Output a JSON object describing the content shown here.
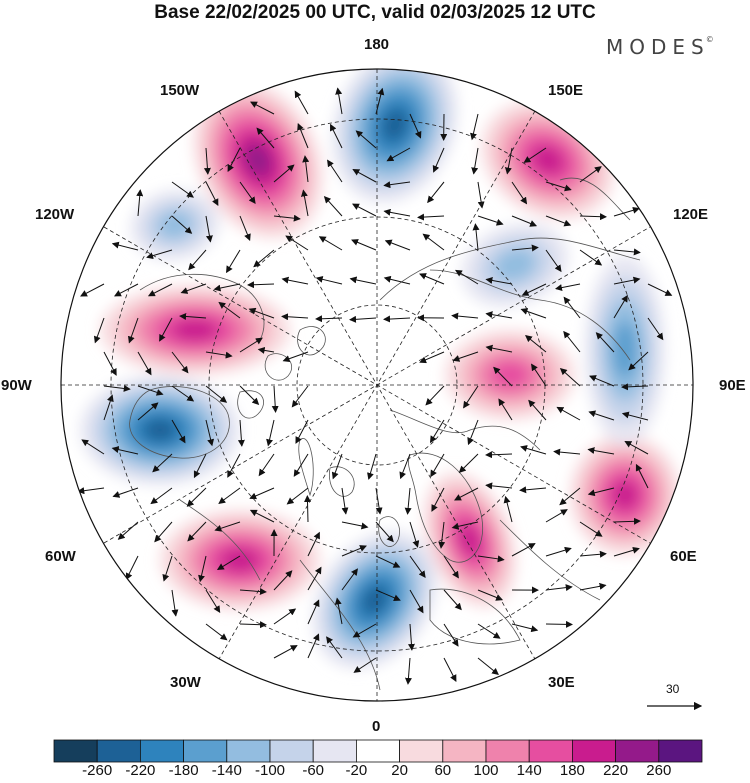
{
  "header": {
    "title": "Base 22/02/2025 00 UTC, valid 02/03/2025 12 UTC",
    "brand": "MODES",
    "brand_mark": "©"
  },
  "map": {
    "projection": "north polar stereographic",
    "longitude_labels": {
      "top": "180",
      "bottom": "0",
      "left": "90W",
      "right": "90E",
      "upper_left_1": "150W",
      "upper_left_2": "120W",
      "lower_left_1": "60W",
      "lower_left_2": "30W",
      "upper_right_1": "150E",
      "upper_right_2": "120E",
      "lower_right_1": "60E",
      "lower_right_2": "30E"
    },
    "anomaly_centers": [
      {
        "sign": "positive",
        "region": "150W",
        "value": 220
      },
      {
        "sign": "negative",
        "region": "180",
        "value": -220
      },
      {
        "sign": "positive",
        "region": "150E",
        "value": 180
      },
      {
        "sign": "negative",
        "region": "120W",
        "value": -100
      },
      {
        "sign": "positive",
        "region": "100W",
        "value": 180
      },
      {
        "sign": "negative",
        "region": "80W",
        "value": -220
      },
      {
        "sign": "positive",
        "region": "60W",
        "value": 180
      },
      {
        "sign": "negative",
        "region": "0",
        "value": -220
      },
      {
        "sign": "positive",
        "region": "30E",
        "value": 180
      },
      {
        "sign": "positive",
        "region": "70E",
        "value": 180
      },
      {
        "sign": "negative",
        "region": "100E",
        "value": -140
      },
      {
        "sign": "positive",
        "region": "90E",
        "value": 140
      },
      {
        "sign": "negative",
        "region": "135E",
        "value": -100
      }
    ]
  },
  "vector_reference": {
    "label": "30"
  },
  "colorbar": {
    "colors": [
      "#153e5c",
      "#1d6196",
      "#2e83bd",
      "#5b9fcf",
      "#93bde0",
      "#c5d3ea",
      "#e6e6f2",
      "#ffffff",
      "#f8dbdf",
      "#f5b5c3",
      "#ef82ac",
      "#e64ea0",
      "#c91c8e",
      "#941a8a",
      "#5b1580"
    ],
    "ticks": [
      "-260",
      "-220",
      "-180",
      "-140",
      "-100",
      "-60",
      "-20",
      "20",
      "60",
      "100",
      "140",
      "180",
      "220",
      "260"
    ]
  }
}
